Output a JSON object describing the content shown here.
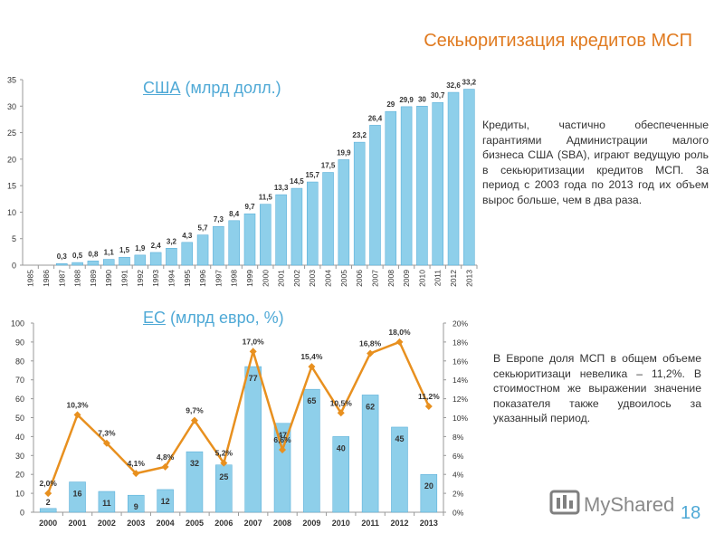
{
  "title": "Секьюритизация кредитов МСП",
  "page_number": "18",
  "logo_text": "MyShared",
  "us_text": "Кредиты, частично обеспеченные гарантиями Администрации малого бизнеса США (SBA), играют ведущую роль в секьюритизации кредитов МСП. За период с 2003 года по 2013 год их объем вырос больше, чем в два раза.",
  "eu_text": "В Европе доля МСП в общем объеме секьюритизаци невелика – 11,2%. В стоимостном же выражении значение показателя также удвоилось за указанный период.",
  "colors": {
    "bar": "#8ECFEA",
    "bar_stroke": "#4FA9D6",
    "line": "#E8901F",
    "title": "#E07A1F",
    "subtitle": "#4FA9D6"
  },
  "chart_data": [
    {
      "type": "bar",
      "title_link": "США",
      "title_rest": " (млрд долл.)",
      "categories": [
        "1985",
        "1986",
        "1987",
        "1988",
        "1989",
        "1990",
        "1991",
        "1992",
        "1993",
        "1994",
        "1995",
        "1996",
        "1997",
        "1998",
        "1999",
        "2000",
        "2001",
        "2002",
        "2003",
        "2004",
        "2005",
        "2006",
        "2007",
        "2008",
        "2009",
        "2010",
        "2011",
        "2012",
        "2013"
      ],
      "values": [
        0,
        0,
        0.3,
        0.5,
        0.8,
        1.1,
        1.5,
        1.9,
        2.4,
        3.2,
        4.3,
        5.7,
        7.3,
        8.4,
        9.7,
        11.5,
        13.3,
        14.5,
        15.7,
        17.5,
        19.9,
        23.2,
        26.4,
        29,
        29.9,
        30,
        30.7,
        32.6,
        33.2
      ],
      "labels": [
        "",
        "",
        "0,3",
        "0,5",
        "0,8",
        "1,1",
        "1,5",
        "1,9",
        "2,4",
        "3,2",
        "4,3",
        "5,7",
        "7,3",
        "8,4",
        "9,7",
        "11,5",
        "13,3",
        "14,5",
        "15,7",
        "17,5",
        "19,9",
        "23,2",
        "26,4",
        "29",
        "29,9",
        "30",
        "30,7",
        "32,6",
        "33,2"
      ],
      "yticks": [
        "0",
        "5",
        "10",
        "15",
        "20",
        "25",
        "30",
        "35"
      ],
      "ylim": [
        0,
        35
      ],
      "grid": false
    },
    {
      "type": "bar+line",
      "title_link": "ЕС",
      "title_rest": " (млрд евро, %)",
      "categories": [
        "2000",
        "2001",
        "2002",
        "2003",
        "2004",
        "2005",
        "2006",
        "2007",
        "2008",
        "2009",
        "2010",
        "2011",
        "2012",
        "2013"
      ],
      "bar_values": [
        2,
        16,
        11,
        9,
        12,
        32,
        25,
        77,
        47,
        65,
        40,
        62,
        45,
        20
      ],
      "bar_labels": [
        "2",
        "16",
        "11",
        "9",
        "12",
        "32",
        "25",
        "77",
        "47",
        "65",
        "40",
        "62",
        "45",
        "20"
      ],
      "line_values": [
        2.0,
        10.3,
        7.3,
        4.1,
        4.8,
        9.7,
        5.2,
        17.0,
        6.6,
        15.4,
        10.5,
        16.8,
        18.0,
        11.2
      ],
      "line_labels": [
        "2,0%",
        "10,3%",
        "7,3%",
        "4,1%",
        "4,8%",
        "9,7%",
        "5,2%",
        "17,0%",
        "6,6%",
        "15,4%",
        "10,5%",
        "16,8%",
        "18,0%",
        "11,2%"
      ],
      "yticks_left": [
        "0",
        "10",
        "20",
        "30",
        "40",
        "50",
        "60",
        "70",
        "80",
        "90",
        "100"
      ],
      "yticks_right": [
        "0%",
        "2%",
        "4%",
        "6%",
        "8%",
        "10%",
        "12%",
        "14%",
        "16%",
        "18%",
        "20%"
      ],
      "ylim_left": [
        0,
        100
      ],
      "ylim_right": [
        0,
        20
      ],
      "grid": false
    }
  ]
}
